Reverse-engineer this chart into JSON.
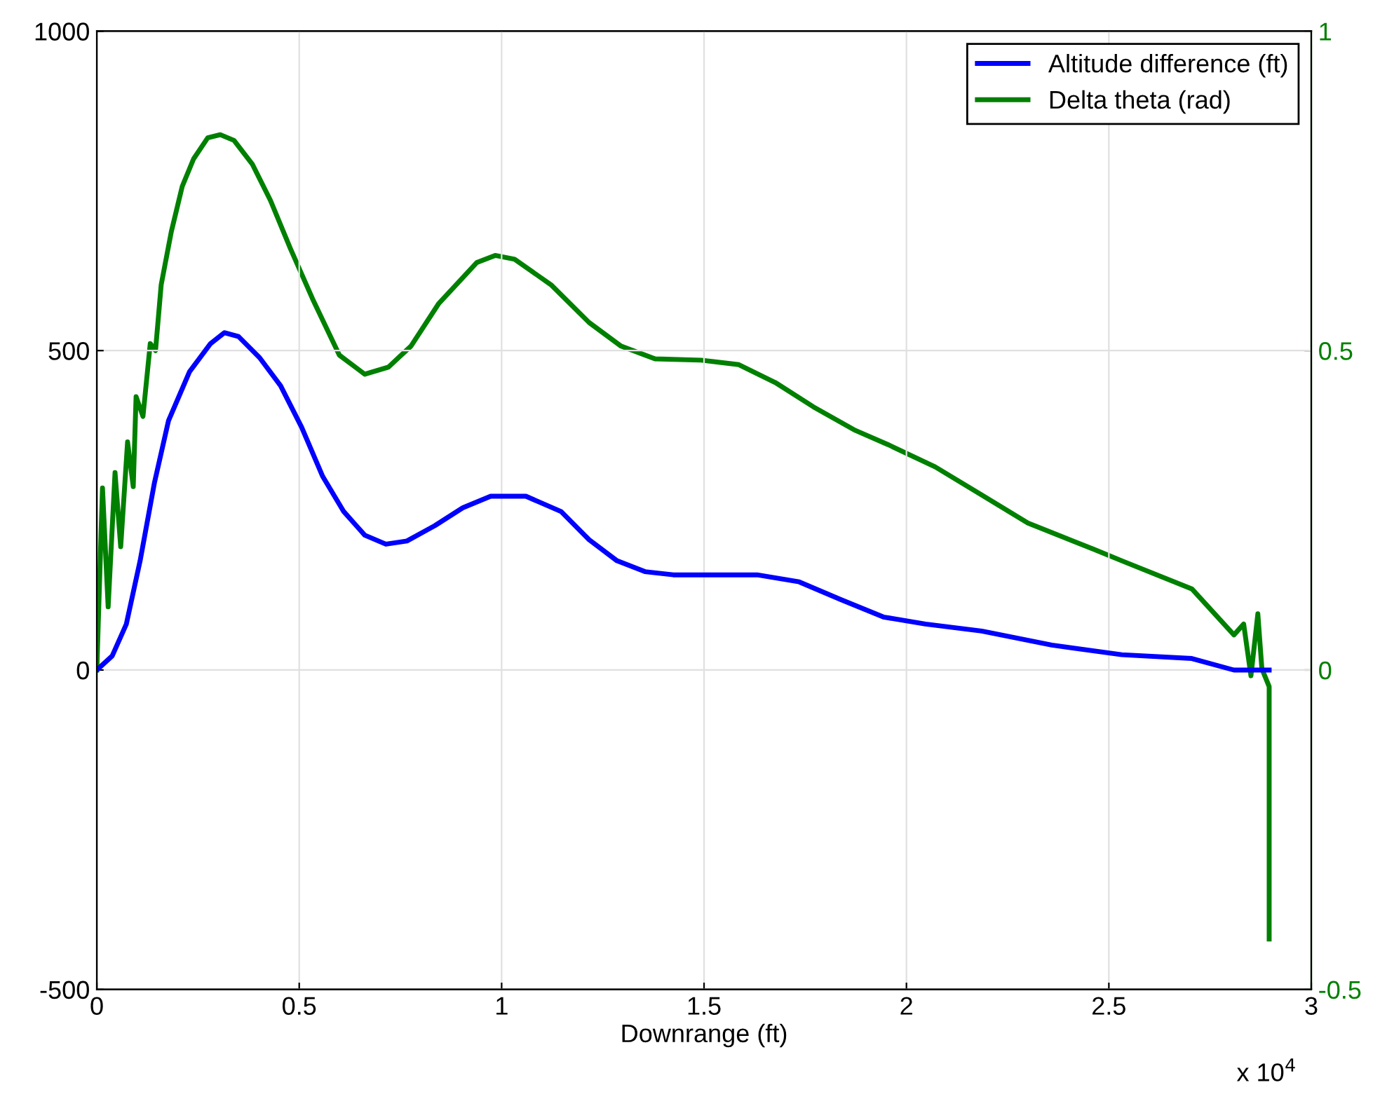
{
  "chart_data": {
    "type": "line",
    "xlabel": "Downrange (ft)",
    "annotations": [
      "x 10$^{4}$"
    ],
    "xlim": [
      0,
      3
    ],
    "xticks": [
      0,
      0.5,
      1,
      1.5,
      2,
      2.5,
      3
    ],
    "ylim": [
      -500,
      1000
    ],
    "yticks": [
      -500,
      0,
      500,
      1000
    ],
    "y2lim": [
      -0.5,
      1
    ],
    "y2ticks": [
      -0.5,
      0,
      0.5,
      1
    ],
    "grid": true,
    "legend": "top right",
    "marker": "none",
    "line_style": "solid",
    "series": [
      {
        "name": "Altitude difference (ft)",
        "color": "#0000ff",
        "x": [
          0,
          0.038,
          0.073,
          0.107,
          0.142,
          0.177,
          0.229,
          0.281,
          0.315,
          0.35,
          0.402,
          0.454,
          0.506,
          0.558,
          0.61,
          0.662,
          0.714,
          0.766,
          0.835,
          0.904,
          0.973,
          1.06,
          1.147,
          1.216,
          1.285,
          1.354,
          1.424,
          1.631,
          1.735,
          1.839,
          1.943,
          2.047,
          2.186,
          2.359,
          2.532,
          2.705,
          2.809,
          2.878,
          2.896
        ],
        "values": [
          0,
          22,
          72,
          171,
          292,
          390,
          467,
          511,
          528,
          522,
          489,
          445,
          380,
          303,
          248,
          211,
          197,
          202,
          226,
          254,
          272,
          272,
          248,
          204,
          171,
          154,
          149,
          149,
          138,
          110,
          83,
          72,
          61,
          39,
          24,
          18,
          0,
          0,
          0
        ]
      },
      {
        "name": "Delta theta (rad)",
        "color": "#008000",
        "axis": "y2",
        "x": [
          0,
          0.014,
          0.028,
          0.045,
          0.059,
          0.076,
          0.09,
          0.097,
          0.114,
          0.132,
          0.145,
          0.159,
          0.184,
          0.211,
          0.239,
          0.274,
          0.305,
          0.339,
          0.384,
          0.429,
          0.478,
          0.533,
          0.599,
          0.662,
          0.72,
          0.776,
          0.845,
          0.939,
          0.984,
          1.032,
          1.122,
          1.216,
          1.295,
          1.379,
          1.493,
          1.586,
          1.676,
          1.77,
          1.874,
          1.954,
          2.071,
          2.186,
          2.3,
          2.463,
          2.532,
          2.705,
          2.809,
          2.833,
          2.851,
          2.868,
          2.878,
          2.896,
          2.896
        ],
        "values": [
          0,
          0.285,
          0.099,
          0.309,
          0.193,
          0.357,
          0.287,
          0.428,
          0.397,
          0.511,
          0.5,
          0.603,
          0.686,
          0.757,
          0.8,
          0.833,
          0.838,
          0.829,
          0.792,
          0.735,
          0.66,
          0.581,
          0.493,
          0.463,
          0.474,
          0.507,
          0.574,
          0.638,
          0.649,
          0.643,
          0.603,
          0.544,
          0.507,
          0.487,
          0.485,
          0.478,
          0.45,
          0.412,
          0.375,
          0.353,
          0.318,
          0.274,
          0.23,
          0.189,
          0.171,
          0.127,
          0.055,
          0.072,
          -0.009,
          0.088,
          0.002,
          -0.026,
          -0.421
        ]
      }
    ]
  }
}
